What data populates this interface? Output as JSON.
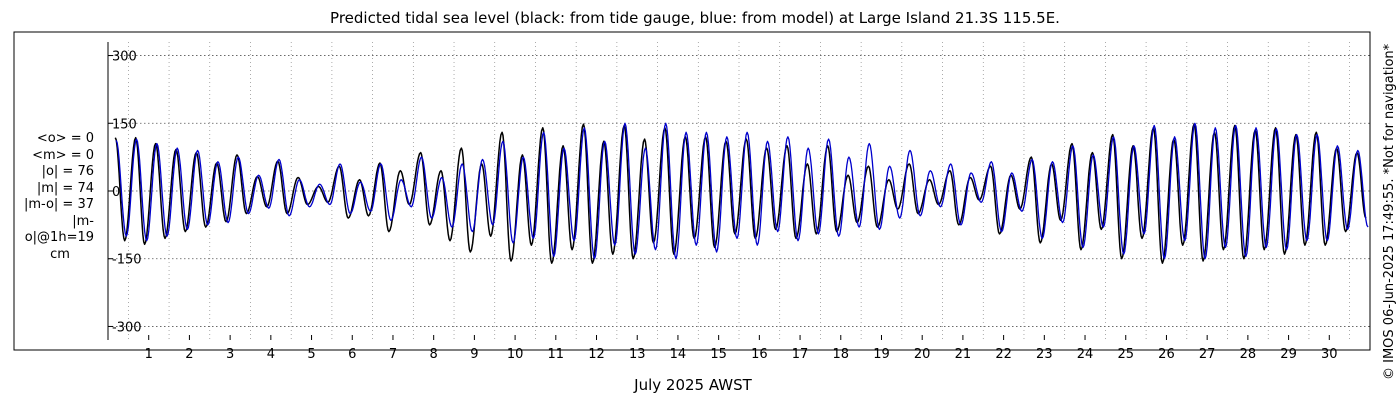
{
  "chart_data": {
    "type": "line",
    "title": "Predicted tidal sea level (black: from tide gauge, blue: from model) at Large Island 21.3S 115.5E.",
    "xlabel": "July 2025 AWST",
    "ylabel": "",
    "xlim": [
      0,
      31
    ],
    "ylim": [
      -330,
      330
    ],
    "yticks": [
      -300,
      -150,
      0,
      150,
      300
    ],
    "ytick_labels": [
      "-300",
      "-150",
      "0",
      "150",
      "300"
    ],
    "xticks": [
      1,
      2,
      3,
      4,
      5,
      6,
      7,
      8,
      9,
      10,
      11,
      12,
      13,
      14,
      15,
      16,
      17,
      18,
      19,
      20,
      21,
      22,
      23,
      24,
      25,
      26,
      27,
      28,
      29,
      30
    ],
    "xtick_labels": [
      "1",
      "2",
      "3",
      "4",
      "5",
      "6",
      "7",
      "8",
      "9",
      "10",
      "11",
      "12",
      "13",
      "14",
      "15",
      "16",
      "17",
      "18",
      "19",
      "20",
      "21",
      "22",
      "23",
      "24",
      "25",
      "26",
      "27",
      "28",
      "29",
      "30"
    ],
    "grid": true,
    "stats_lines": [
      "<o> = 0",
      "<m> = 0",
      "|o| = 76",
      "|m| = 74",
      "|m-o| = 37",
      "|m-o|@1h=19"
    ],
    "stats_unit": "cm",
    "side_note": "© IMOS 06-Jun-2025 17:49:55. *Not for navigation*",
    "series": [
      {
        "color": "#000000",
        "peaks": [
          [
            0.18,
            118
          ],
          [
            0.41,
            -110
          ],
          [
            0.68,
            118
          ],
          [
            0.9,
            -118
          ],
          [
            1.17,
            105
          ],
          [
            1.4,
            -105
          ],
          [
            1.67,
            92
          ],
          [
            1.9,
            -90
          ],
          [
            2.17,
            85
          ],
          [
            2.4,
            -80
          ],
          [
            2.67,
            62
          ],
          [
            2.9,
            -68
          ],
          [
            3.17,
            80
          ],
          [
            3.4,
            -50
          ],
          [
            3.67,
            32
          ],
          [
            3.9,
            -35
          ],
          [
            4.17,
            66
          ],
          [
            4.4,
            -50
          ],
          [
            4.67,
            30
          ],
          [
            4.9,
            -30
          ],
          [
            5.17,
            10
          ],
          [
            5.4,
            -25
          ],
          [
            5.68,
            55
          ],
          [
            5.9,
            -60
          ],
          [
            6.18,
            25
          ],
          [
            6.4,
            -55
          ],
          [
            6.68,
            62
          ],
          [
            6.9,
            -90
          ],
          [
            7.18,
            45
          ],
          [
            7.4,
            -30
          ],
          [
            7.68,
            85
          ],
          [
            7.9,
            -75
          ],
          [
            8.18,
            45
          ],
          [
            8.4,
            -110
          ],
          [
            8.68,
            95
          ],
          [
            8.9,
            -135
          ],
          [
            9.18,
            60
          ],
          [
            9.4,
            -100
          ],
          [
            9.68,
            130
          ],
          [
            9.9,
            -155
          ],
          [
            10.18,
            80
          ],
          [
            10.4,
            -120
          ],
          [
            10.68,
            140
          ],
          [
            10.9,
            -160
          ],
          [
            11.18,
            100
          ],
          [
            11.4,
            -130
          ],
          [
            11.68,
            148
          ],
          [
            11.9,
            -160
          ],
          [
            12.18,
            110
          ],
          [
            12.4,
            -140
          ],
          [
            12.68,
            145
          ],
          [
            12.9,
            -150
          ],
          [
            13.18,
            115
          ],
          [
            13.4,
            -115
          ],
          [
            13.68,
            140
          ],
          [
            13.9,
            -140
          ],
          [
            14.18,
            120
          ],
          [
            14.4,
            -105
          ],
          [
            14.68,
            120
          ],
          [
            14.9,
            -125
          ],
          [
            15.18,
            110
          ],
          [
            15.4,
            -95
          ],
          [
            15.68,
            115
          ],
          [
            15.9,
            -105
          ],
          [
            16.18,
            95
          ],
          [
            16.4,
            -85
          ],
          [
            16.68,
            100
          ],
          [
            16.9,
            -105
          ],
          [
            17.18,
            60
          ],
          [
            17.4,
            -95
          ],
          [
            17.68,
            100
          ],
          [
            17.9,
            -90
          ],
          [
            18.18,
            35
          ],
          [
            18.4,
            -70
          ],
          [
            18.68,
            55
          ],
          [
            18.9,
            -80
          ],
          [
            19.18,
            25
          ],
          [
            19.4,
            -40
          ],
          [
            19.68,
            60
          ],
          [
            19.9,
            -50
          ],
          [
            20.18,
            25
          ],
          [
            20.4,
            -30
          ],
          [
            20.68,
            45
          ],
          [
            20.9,
            -75
          ],
          [
            21.18,
            30
          ],
          [
            21.4,
            -20
          ],
          [
            21.68,
            55
          ],
          [
            21.9,
            -95
          ],
          [
            22.18,
            35
          ],
          [
            22.4,
            -40
          ],
          [
            22.68,
            75
          ],
          [
            22.9,
            -115
          ],
          [
            23.18,
            60
          ],
          [
            23.4,
            -65
          ],
          [
            23.68,
            105
          ],
          [
            23.9,
            -130
          ],
          [
            24.18,
            85
          ],
          [
            24.4,
            -85
          ],
          [
            24.68,
            125
          ],
          [
            24.9,
            -150
          ],
          [
            25.18,
            100
          ],
          [
            25.4,
            -105
          ],
          [
            25.68,
            140
          ],
          [
            25.9,
            -160
          ],
          [
            26.18,
            115
          ],
          [
            26.4,
            -120
          ],
          [
            26.68,
            148
          ],
          [
            26.9,
            -155
          ],
          [
            27.18,
            130
          ],
          [
            27.4,
            -130
          ],
          [
            27.68,
            145
          ],
          [
            27.9,
            -150
          ],
          [
            28.18,
            135
          ],
          [
            28.4,
            -130
          ],
          [
            28.68,
            140
          ],
          [
            28.9,
            -140
          ],
          [
            29.18,
            125
          ],
          [
            29.4,
            -120
          ],
          [
            29.68,
            130
          ],
          [
            29.9,
            -120
          ],
          [
            30.18,
            95
          ],
          [
            30.4,
            -90
          ],
          [
            30.68,
            85
          ],
          [
            30.9,
            -60
          ]
        ]
      },
      {
        "color": "#0000cc",
        "peaks": [
          [
            0.2,
            112
          ],
          [
            0.45,
            -100
          ],
          [
            0.7,
            115
          ],
          [
            0.95,
            -110
          ],
          [
            1.2,
            105
          ],
          [
            1.45,
            -100
          ],
          [
            1.7,
            95
          ],
          [
            1.95,
            -85
          ],
          [
            2.2,
            90
          ],
          [
            2.45,
            -75
          ],
          [
            2.7,
            65
          ],
          [
            2.95,
            -70
          ],
          [
            3.2,
            75
          ],
          [
            3.45,
            -50
          ],
          [
            3.7,
            35
          ],
          [
            3.95,
            -38
          ],
          [
            4.2,
            70
          ],
          [
            4.45,
            -55
          ],
          [
            4.7,
            25
          ],
          [
            4.95,
            -35
          ],
          [
            5.2,
            15
          ],
          [
            5.45,
            -30
          ],
          [
            5.7,
            60
          ],
          [
            5.95,
            -50
          ],
          [
            6.2,
            20
          ],
          [
            6.45,
            -45
          ],
          [
            6.7,
            60
          ],
          [
            6.95,
            -65
          ],
          [
            7.2,
            25
          ],
          [
            7.45,
            -35
          ],
          [
            7.7,
            75
          ],
          [
            7.95,
            -60
          ],
          [
            8.2,
            30
          ],
          [
            8.45,
            -80
          ],
          [
            8.7,
            60
          ],
          [
            8.95,
            -90
          ],
          [
            9.2,
            70
          ],
          [
            9.45,
            -75
          ],
          [
            9.7,
            110
          ],
          [
            9.95,
            -115
          ],
          [
            10.2,
            75
          ],
          [
            10.45,
            -105
          ],
          [
            10.7,
            130
          ],
          [
            10.95,
            -145
          ],
          [
            11.2,
            95
          ],
          [
            11.45,
            -110
          ],
          [
            11.7,
            140
          ],
          [
            11.95,
            -150
          ],
          [
            12.2,
            110
          ],
          [
            12.45,
            -120
          ],
          [
            12.7,
            150
          ],
          [
            12.95,
            -140
          ],
          [
            13.2,
            95
          ],
          [
            13.45,
            -130
          ],
          [
            13.7,
            150
          ],
          [
            13.95,
            -150
          ],
          [
            14.2,
            130
          ],
          [
            14.45,
            -120
          ],
          [
            14.7,
            130
          ],
          [
            14.95,
            -135
          ],
          [
            15.2,
            120
          ],
          [
            15.45,
            -105
          ],
          [
            15.7,
            130
          ],
          [
            15.95,
            -120
          ],
          [
            16.2,
            110
          ],
          [
            16.45,
            -90
          ],
          [
            16.7,
            120
          ],
          [
            16.95,
            -110
          ],
          [
            17.2,
            95
          ],
          [
            17.45,
            -95
          ],
          [
            17.7,
            115
          ],
          [
            17.95,
            -100
          ],
          [
            18.2,
            75
          ],
          [
            18.45,
            -80
          ],
          [
            18.7,
            105
          ],
          [
            18.95,
            -85
          ],
          [
            19.2,
            55
          ],
          [
            19.45,
            -60
          ],
          [
            19.7,
            90
          ],
          [
            19.95,
            -55
          ],
          [
            20.2,
            45
          ],
          [
            20.45,
            -35
          ],
          [
            20.7,
            60
          ],
          [
            20.95,
            -75
          ],
          [
            21.2,
            40
          ],
          [
            21.45,
            -25
          ],
          [
            21.7,
            65
          ],
          [
            21.95,
            -90
          ],
          [
            22.2,
            40
          ],
          [
            22.45,
            -45
          ],
          [
            22.7,
            70
          ],
          [
            22.95,
            -105
          ],
          [
            23.2,
            65
          ],
          [
            23.45,
            -70
          ],
          [
            23.7,
            100
          ],
          [
            23.95,
            -125
          ],
          [
            24.2,
            80
          ],
          [
            24.45,
            -80
          ],
          [
            24.7,
            120
          ],
          [
            24.95,
            -140
          ],
          [
            25.2,
            100
          ],
          [
            25.45,
            -95
          ],
          [
            25.7,
            145
          ],
          [
            25.95,
            -150
          ],
          [
            26.2,
            120
          ],
          [
            26.45,
            -110
          ],
          [
            26.7,
            150
          ],
          [
            26.95,
            -150
          ],
          [
            27.2,
            140
          ],
          [
            27.45,
            -125
          ],
          [
            27.7,
            145
          ],
          [
            27.95,
            -145
          ],
          [
            28.2,
            140
          ],
          [
            28.45,
            -125
          ],
          [
            28.7,
            138
          ],
          [
            28.95,
            -130
          ],
          [
            29.2,
            125
          ],
          [
            29.45,
            -110
          ],
          [
            29.7,
            125
          ],
          [
            29.95,
            -110
          ],
          [
            30.2,
            100
          ],
          [
            30.45,
            -85
          ],
          [
            30.7,
            90
          ],
          [
            30.95,
            -80
          ]
        ]
      }
    ]
  }
}
